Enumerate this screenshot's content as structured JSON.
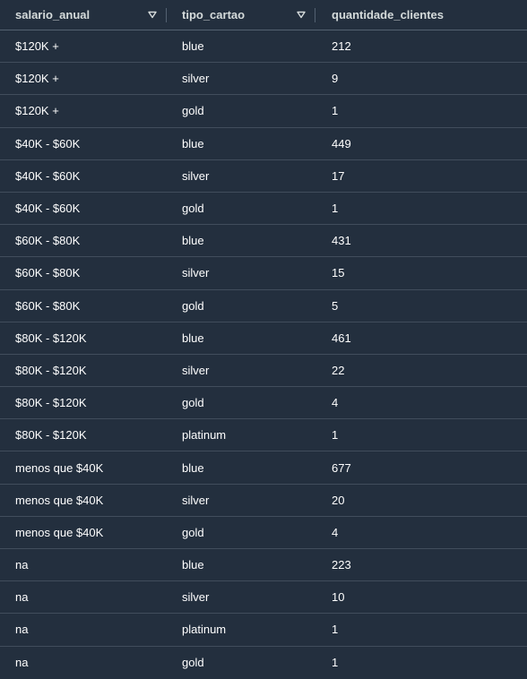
{
  "table": {
    "columns": [
      {
        "label": "salario_anual"
      },
      {
        "label": "tipo_cartao"
      },
      {
        "label": "quantidade_clientes"
      }
    ],
    "rows": [
      {
        "salario_anual": "$120K +",
        "tipo_cartao": "blue",
        "quantidade_clientes": "212"
      },
      {
        "salario_anual": "$120K +",
        "tipo_cartao": "silver",
        "quantidade_clientes": "9"
      },
      {
        "salario_anual": "$120K +",
        "tipo_cartao": "gold",
        "quantidade_clientes": "1"
      },
      {
        "salario_anual": "$40K - $60K",
        "tipo_cartao": "blue",
        "quantidade_clientes": "449"
      },
      {
        "salario_anual": "$40K - $60K",
        "tipo_cartao": "silver",
        "quantidade_clientes": "17"
      },
      {
        "salario_anual": "$40K - $60K",
        "tipo_cartao": "gold",
        "quantidade_clientes": "1"
      },
      {
        "salario_anual": "$60K - $80K",
        "tipo_cartao": "blue",
        "quantidade_clientes": "431"
      },
      {
        "salario_anual": "$60K - $80K",
        "tipo_cartao": "silver",
        "quantidade_clientes": "15"
      },
      {
        "salario_anual": "$60K - $80K",
        "tipo_cartao": "gold",
        "quantidade_clientes": "5"
      },
      {
        "salario_anual": "$80K - $120K",
        "tipo_cartao": "blue",
        "quantidade_clientes": "461"
      },
      {
        "salario_anual": "$80K - $120K",
        "tipo_cartao": "silver",
        "quantidade_clientes": "22"
      },
      {
        "salario_anual": "$80K - $120K",
        "tipo_cartao": "gold",
        "quantidade_clientes": "4"
      },
      {
        "salario_anual": "$80K - $120K",
        "tipo_cartao": "platinum",
        "quantidade_clientes": "1"
      },
      {
        "salario_anual": "menos que $40K",
        "tipo_cartao": "blue",
        "quantidade_clientes": "677"
      },
      {
        "salario_anual": "menos que $40K",
        "tipo_cartao": "silver",
        "quantidade_clientes": "20"
      },
      {
        "salario_anual": "menos que $40K",
        "tipo_cartao": "gold",
        "quantidade_clientes": "4"
      },
      {
        "salario_anual": "na",
        "tipo_cartao": "blue",
        "quantidade_clientes": "223"
      },
      {
        "salario_anual": "na",
        "tipo_cartao": "silver",
        "quantidade_clientes": "10"
      },
      {
        "salario_anual": "na",
        "tipo_cartao": "platinum",
        "quantidade_clientes": "1"
      },
      {
        "salario_anual": "na",
        "tipo_cartao": "gold",
        "quantidade_clientes": "1"
      }
    ]
  },
  "icons": {
    "sort": "sort-down-triangle-icon"
  },
  "colors": {
    "background": "#232f3e",
    "header_text": "#d5dbdb",
    "cell_text": "#ffffff",
    "row_divider": "#414d5c",
    "sort_icon": "#d5dbdb"
  }
}
